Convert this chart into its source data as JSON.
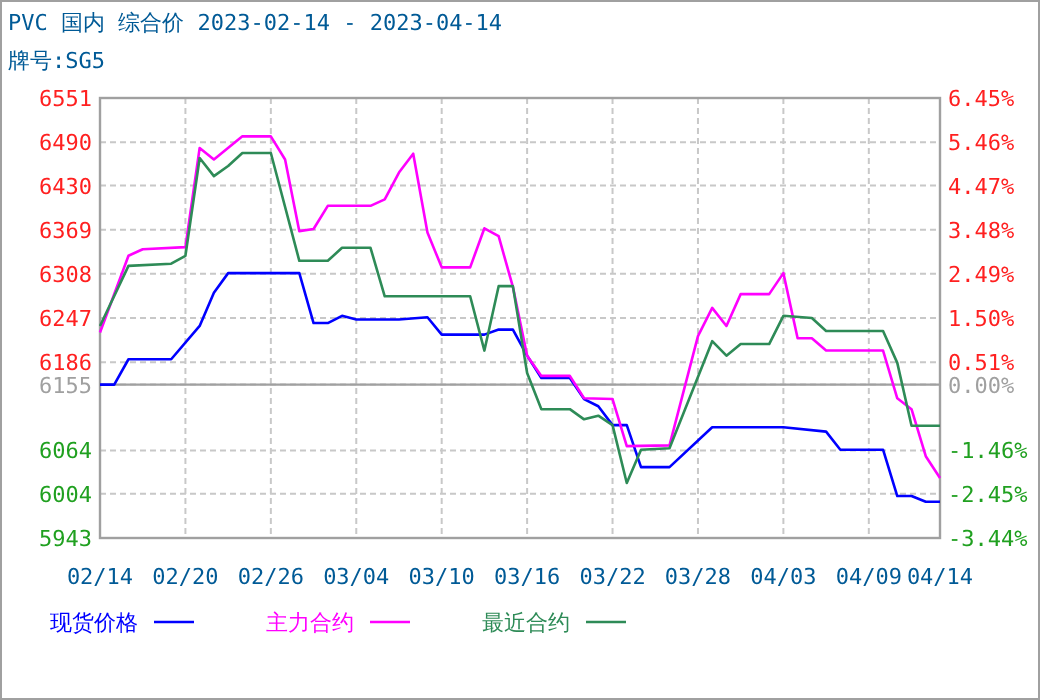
{
  "chart_data": {
    "type": "line",
    "title": "PVC 国内 综合价 2023-02-14 - 2023-04-14",
    "subtitle": "牌号:SG5",
    "xlim": [
      "--02-14",
      "--04-14"
    ],
    "xticks": [
      {
        "value": "--02-14",
        "label": "02/14"
      },
      {
        "value": "--02-20",
        "label": "02/20"
      },
      {
        "value": "--02-26",
        "label": "02/26"
      },
      {
        "value": "--03-04",
        "label": "03/04"
      },
      {
        "value": "--03-10",
        "label": "03/10"
      },
      {
        "value": "--03-16",
        "label": "03/16"
      },
      {
        "value": "--03-22",
        "label": "03/22"
      },
      {
        "value": "--03-28",
        "label": "03/28"
      },
      {
        "value": "--04-03",
        "label": "04/03"
      },
      {
        "value": "--04-09",
        "label": "04/09"
      },
      {
        "value": "--04-14",
        "label": "04/14"
      }
    ],
    "ylim": [
      5943,
      6551
    ],
    "yticks": [
      6551,
      6490,
      6430,
      6369,
      6308,
      6247,
      6186,
      6155,
      6064,
      6004,
      5943
    ],
    "y2lim": [
      -3.44,
      6.45
    ],
    "y2ticks": [
      {
        "value": 6.45,
        "label": "6.45%"
      },
      {
        "value": 5.46,
        "label": "5.46%"
      },
      {
        "value": 4.47,
        "label": "4.47%"
      },
      {
        "value": 3.48,
        "label": "3.48%"
      },
      {
        "value": 2.49,
        "label": "2.49%"
      },
      {
        "value": 1.5,
        "label": "1.50%"
      },
      {
        "value": 0.51,
        "label": "0.51%"
      },
      {
        "value": 0,
        "label": "0.00%"
      },
      {
        "value": -1.46,
        "label": "-1.46%"
      },
      {
        "value": -2.45,
        "label": "-2.45%"
      },
      {
        "value": -3.44,
        "label": "-3.44%"
      }
    ],
    "ref_lines": [
      {
        "axis": "y",
        "value": 6155,
        "color": "#a0a0a0"
      }
    ],
    "grid": true,
    "legend": "bottom",
    "series": [
      {
        "name": "现货价格",
        "color": "#0000ff",
        "x": [
          "--02-14",
          "--02-15",
          "--02-16",
          "--02-19",
          "--02-21",
          "--02-22",
          "--02-23",
          "--02-28",
          "--03-01",
          "--03-02",
          "--03-03",
          "--03-04",
          "--03-07",
          "--03-09",
          "--03-10",
          "--03-13",
          "--03-14",
          "--03-15",
          "--03-16",
          "--03-17",
          "--03-19",
          "--03-20",
          "--03-21",
          "--03-22",
          "--03-23",
          "--03-24",
          "--03-26",
          "--03-29",
          "--04-03",
          "--04-06",
          "--04-07",
          "--04-10",
          "--04-11",
          "--04-12",
          "--04-13",
          "--04-14"
        ],
        "values": [
          6155,
          6155,
          6190,
          6190,
          6236,
          6282,
          6309,
          6309,
          6240,
          6240,
          6250,
          6245,
          6245,
          6248,
          6224,
          6224,
          6231,
          6231,
          6195,
          6164,
          6164,
          6135,
          6125,
          6099,
          6099,
          6041,
          6041,
          6096,
          6096,
          6090,
          6065,
          6065,
          6001,
          6001,
          5993,
          5993
        ]
      },
      {
        "name": "主力合约",
        "color": "#ff00ff",
        "x": [
          "--02-14",
          "--02-16",
          "--02-17",
          "--02-20",
          "--02-21",
          "--02-22",
          "--02-24",
          "--02-26",
          "--02-27",
          "--02-28",
          "--03-01",
          "--03-02",
          "--03-05",
          "--03-06",
          "--03-07",
          "--03-08",
          "--03-09",
          "--03-10",
          "--03-12",
          "--03-13",
          "--03-14",
          "--03-15",
          "--03-16",
          "--03-17",
          "--03-19",
          "--03-20",
          "--03-22",
          "--03-23",
          "--03-26",
          "--03-28",
          "--03-29",
          "--03-30",
          "--03-31",
          "--04-02",
          "--04-03",
          "--04-04",
          "--04-05",
          "--04-06",
          "--04-10",
          "--04-11",
          "--04-12",
          "--04-13",
          "--04-14"
        ],
        "values": [
          6227,
          6333,
          6342,
          6345,
          6482,
          6466,
          6498,
          6498,
          6466,
          6367,
          6370,
          6402,
          6402,
          6411,
          6448,
          6474,
          6365,
          6317,
          6317,
          6371,
          6360,
          6290,
          6195,
          6167,
          6167,
          6136,
          6135,
          6070,
          6071,
          6222,
          6261,
          6236,
          6280,
          6280,
          6309,
          6219,
          6219,
          6202,
          6202,
          6136,
          6121,
          6056,
          6026
        ]
      },
      {
        "name": "最近合约",
        "color": "#2e8b57",
        "x": [
          "--02-14",
          "--02-16",
          "--02-19",
          "--02-20",
          "--02-21",
          "--02-22",
          "--02-23",
          "--02-24",
          "--02-26",
          "--02-28",
          "--03-02",
          "--03-03",
          "--03-05",
          "--03-06",
          "--03-12",
          "--03-13",
          "--03-14",
          "--03-15",
          "--03-16",
          "--03-17",
          "--03-19",
          "--03-20",
          "--03-21",
          "--03-22",
          "--03-23",
          "--03-24",
          "--03-26",
          "--03-29",
          "--03-30",
          "--03-31",
          "--04-02",
          "--04-03",
          "--04-05",
          "--04-06",
          "--04-10",
          "--04-11",
          "--04-12",
          "--04-14"
        ],
        "values": [
          6236,
          6319,
          6322,
          6333,
          6468,
          6443,
          6457,
          6475,
          6475,
          6326,
          6326,
          6344,
          6344,
          6277,
          6277,
          6202,
          6291,
          6291,
          6171,
          6121,
          6121,
          6107,
          6112,
          6099,
          6019,
          6065,
          6067,
          6215,
          6195,
          6211,
          6211,
          6250,
          6247,
          6229,
          6229,
          6185,
          6098,
          6098
        ]
      }
    ]
  }
}
